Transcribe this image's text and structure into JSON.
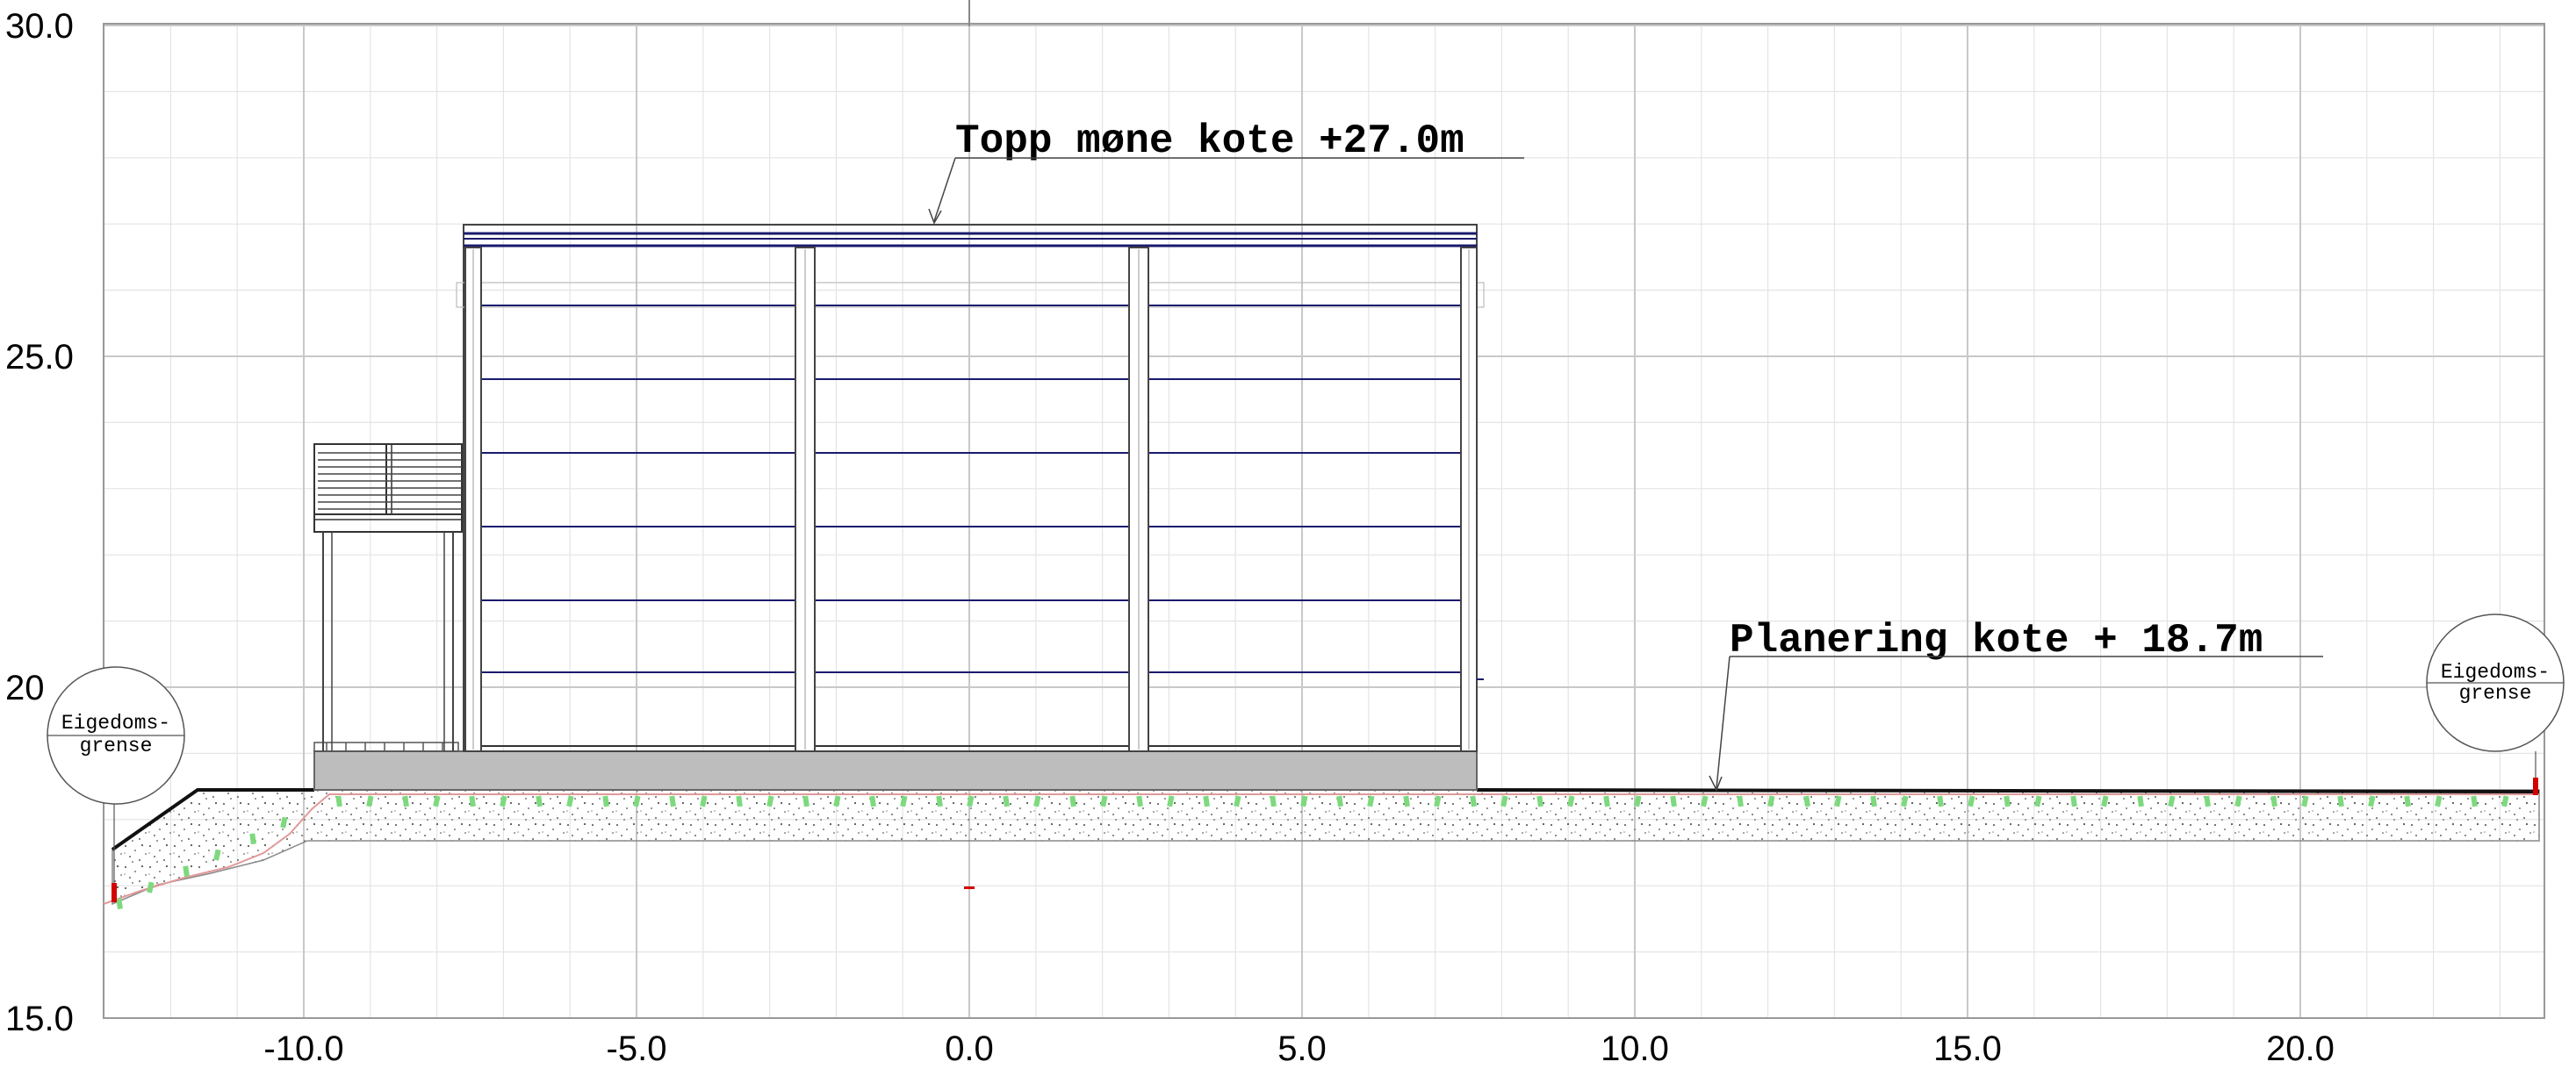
{
  "axes": {
    "x_ticks": [
      "-10.0",
      "-5.0",
      "0.0",
      "5.0",
      "10.0",
      "15.0",
      "20.0"
    ],
    "y_ticks": [
      "15.0",
      "20",
      "25.0",
      "30.0"
    ]
  },
  "annotations": {
    "ridge_label": "Topp møne kote +27.0m",
    "grade_label": "Planering kote + 18.7m"
  },
  "boundary_markers": {
    "left": {
      "line1": "Eigedoms-",
      "line2": "grense"
    },
    "right": {
      "line1": "Eigedoms-",
      "line2": "grense"
    }
  },
  "colors": {
    "grid_major": "#c8c8c8",
    "grid_minor": "#e4e4e4",
    "structure": "#444444",
    "panel_lines": "#1a1a6e",
    "foundation": "#bdbdbd",
    "vegetation": "#7ed97e",
    "boundary_red": "#d40000"
  }
}
